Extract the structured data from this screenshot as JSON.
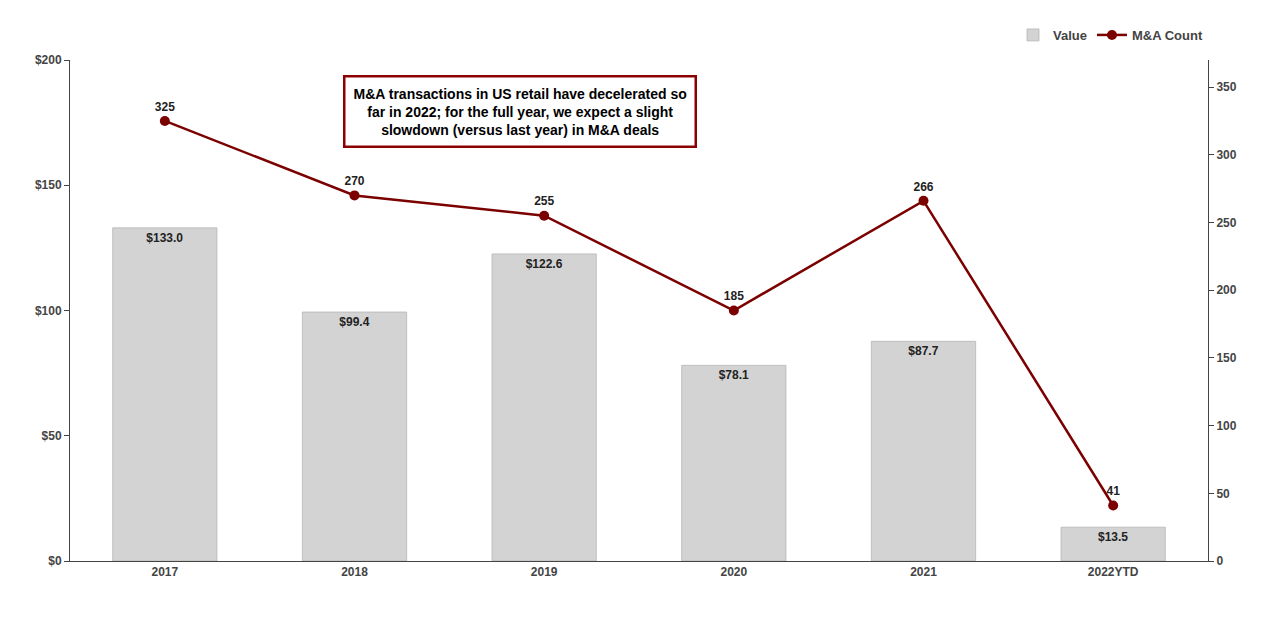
{
  "chart_data": {
    "type": "bar",
    "categories": [
      "2017",
      "2018",
      "2019",
      "2020",
      "2021",
      "2022YTD"
    ],
    "series": [
      {
        "name": "Value",
        "type": "bar",
        "color": "#d3d3d3",
        "values": [
          133.0,
          99.4,
          122.6,
          78.1,
          87.7,
          13.5
        ],
        "value_labels": [
          "$133.0",
          "$99.4",
          "$122.6",
          "$78.1",
          "$87.7",
          "$13.5"
        ]
      },
      {
        "name": "M&A Count",
        "type": "line",
        "axis": "y2",
        "color": "#7b0000",
        "marker": "circle",
        "values": [
          325,
          270,
          255,
          185,
          266,
          41
        ],
        "data_labels": true
      }
    ],
    "ylim": [
      0,
      200
    ],
    "yticks": [
      {
        "value": 0,
        "label": "$0"
      },
      {
        "value": 50,
        "label": "$50"
      },
      {
        "value": 100,
        "label": "$100"
      },
      {
        "value": 150,
        "label": "$150"
      },
      {
        "value": 200,
        "label": "$200"
      }
    ],
    "y2lim": [
      0,
      370
    ],
    "y2ticks": [
      0,
      50,
      100,
      150,
      200,
      250,
      300,
      350
    ],
    "annotations": [
      "M&A transactions in US retail have decelerated so\nfar in 2022; for the full year, we expect a slight\nslowdown (versus last year) in M&A deals"
    ],
    "legend": "top-right",
    "grid": false
  }
}
